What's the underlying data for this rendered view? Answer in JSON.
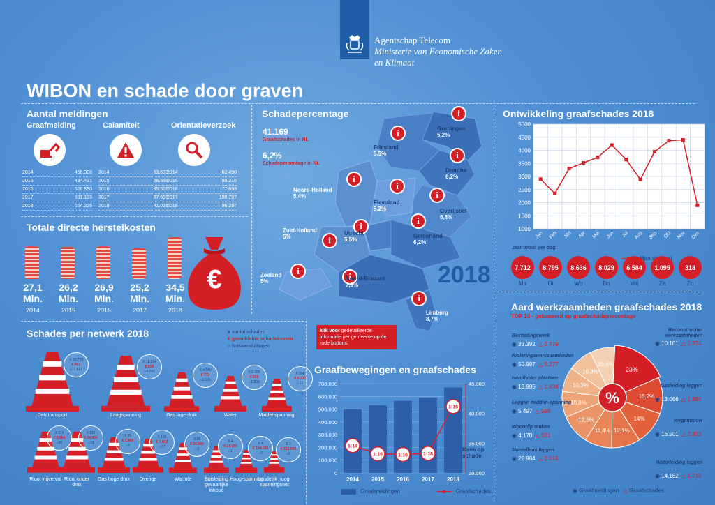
{
  "header": {
    "org_line1": "Agentschap Telecom",
    "org_line2": "Ministerie van Economische Zaken",
    "org_line3": "en Klimaat",
    "title": "WIBON en schade door graven"
  },
  "meldingen": {
    "title": "Aantal meldingen",
    "columns": [
      {
        "label": "Graafmelding",
        "icon": "excavator-icon",
        "rows": [
          [
            "2014",
            "466.388"
          ],
          [
            "2015",
            "494.431"
          ],
          [
            "2016",
            "526.890"
          ],
          [
            "2017",
            "551.133"
          ],
          [
            "2018",
            "624.035"
          ]
        ]
      },
      {
        "label": "Calamiteit",
        "icon": "warning-icon",
        "rows": [
          [
            "2014",
            "33.633"
          ],
          [
            "2015",
            "36.559"
          ],
          [
            "2016",
            "35.528"
          ],
          [
            "2017",
            "37.693"
          ],
          [
            "2018",
            "41.018"
          ]
        ]
      },
      {
        "label": "Orientatieverzoek",
        "icon": "magnifier-icon",
        "rows": [
          [
            "2014",
            "62.490"
          ],
          [
            "2015",
            "85.215"
          ],
          [
            "2016",
            "77.693"
          ],
          [
            "2017",
            "100.797"
          ],
          [
            "2018",
            "96.297"
          ]
        ]
      }
    ]
  },
  "herstelkosten": {
    "title": "Totale directe herstelkosten",
    "unit": "Mln.",
    "items": [
      {
        "year": "2014",
        "value": "27,1",
        "amount": 27.1
      },
      {
        "year": "2015",
        "value": "26,2",
        "amount": 26.2
      },
      {
        "year": "2016",
        "value": "26,9",
        "amount": 26.9
      },
      {
        "year": "2017",
        "value": "25,2",
        "amount": 25.2
      },
      {
        "year": "2018",
        "value": "34,5",
        "amount": 34.5
      }
    ],
    "symbol": "€"
  },
  "schadepercentage": {
    "title": "Schadepercentage",
    "total_value": "41.169",
    "total_label": "Graafschades in NL",
    "pct_value": "6,2%",
    "pct_label": "Schadepercentage in NL",
    "year": "2018",
    "marker_glyph": "i",
    "provinces": {
      "groningen": {
        "name": "Groningen",
        "pct": "5,2%"
      },
      "friesland": {
        "name": "Friesland",
        "pct": "5,5%"
      },
      "drenthe": {
        "name": "Drenthe",
        "pct": "6,2%"
      },
      "noord_holland": {
        "name": "Noord-Holland",
        "pct": "5,4%"
      },
      "flevoland": {
        "name": "Flevoland",
        "pct": "5,2%"
      },
      "overijssel": {
        "name": "Overijssel",
        "pct": "6,8%"
      },
      "zuid_holland": {
        "name": "Zuid-Holland",
        "pct": "5%"
      },
      "utrecht": {
        "name": "Utrecht",
        "pct": "5,5%"
      },
      "gelderland": {
        "name": "Gelderland",
        "pct": "6,2%"
      },
      "zeeland": {
        "name": "Zeeland",
        "pct": "5%"
      },
      "noord_brabant": {
        "name": "Noord-Brabant",
        "pct": "7,3%"
      },
      "limburg": {
        "name": "Limburg",
        "pct": "8,7%"
      }
    },
    "note_bold": "klik voor",
    "note_rest": "gedetailleerde informatie per gemeente op de rode buttons."
  },
  "chart_data": [
    {
      "type": "line",
      "title": "Ontwikkeling graafschades 2018",
      "categories": [
        "Jan",
        "Feb",
        "Mrt",
        "Apr",
        "Mei",
        "Jun",
        "Jul",
        "Aug",
        "Sep",
        "Okt",
        "Nov",
        "Dec"
      ],
      "series": [
        {
          "name": "Maand totaal",
          "values": [
            2900,
            2350,
            3300,
            3520,
            3730,
            4200,
            3650,
            2880,
            3950,
            4370,
            4400,
            1900
          ]
        }
      ],
      "ylim": [
        1000,
        5000
      ],
      "yticks": [
        "5000",
        "4500",
        "4000",
        "3500",
        "3000",
        "2500",
        "2000",
        "1500",
        "1000"
      ],
      "grid": true,
      "legend": "bottom-right",
      "color": "#d51f27"
    },
    {
      "type": "bar",
      "title": "Graafbewegingen en graafschades",
      "categories": [
        "2014",
        "2015",
        "2016",
        "2017",
        "2018"
      ],
      "series": [
        {
          "name": "Graafmeldingen",
          "type": "bar",
          "values": [
            500000,
            530000,
            565000,
            590000,
            670000
          ],
          "color": "#2d5ea8"
        },
        {
          "name": "Graafschades",
          "type": "line",
          "values": [
            34600,
            33200,
            33100,
            33300,
            41169
          ],
          "color": "#d51f27"
        }
      ],
      "ratios": [
        "1:14",
        "1:16",
        "1:16",
        "1:18",
        "1:16"
      ],
      "ylim_left": [
        0,
        700000
      ],
      "yticks_left": [
        "700.000",
        "600.000",
        "500.000",
        "400.000",
        "300.000",
        "200.000",
        "100.000",
        "0"
      ],
      "ylim_right": [
        30000,
        45000
      ],
      "yticks_right": [
        "45.000",
        "40.000",
        "35.000",
        "30.000"
      ],
      "right_axis_label": "Kans op schade",
      "legend": "bottom"
    },
    {
      "type": "pie",
      "title": "Aard werkzaamheden graafschades 2018",
      "subtitle": "TOP 10 - gebaseerd op graafschadepercentage",
      "center_symbol": "%",
      "labels": [
        "23%",
        "15,2%",
        "14%",
        "12,1%",
        "11,4%",
        "12,5%",
        "10,8%",
        "10,3%",
        "10,3%",
        "10,4%"
      ],
      "values": [
        23,
        15.2,
        14,
        12.1,
        11.4,
        12.5,
        10.8,
        10.3,
        10.3,
        10.4
      ],
      "colors": [
        "#d51f27",
        "#de4a30",
        "#e2613b",
        "#e57548",
        "#e88456",
        "#eb9466",
        "#eea477",
        "#f0b389",
        "#f2c29d",
        "#f4d1b3"
      ]
    }
  ],
  "dagtotaal": {
    "title": "Jaar totaal per dag:",
    "days": [
      {
        "label": "Ma",
        "value": "7.712"
      },
      {
        "label": "Di",
        "value": "8.795"
      },
      {
        "label": "Wo",
        "value": "8.636"
      },
      {
        "label": "Do",
        "value": "8.029"
      },
      {
        "label": "Vrij",
        "value": "6.584"
      },
      {
        "label": "Za",
        "value": "1.095"
      },
      {
        "label": "Zo",
        "value": "318"
      }
    ]
  },
  "netwerk": {
    "title": "Schades per netwerk 2018",
    "legend": [
      "aantal schades",
      "gemiddelde schadekosten",
      "huisaansluitingen"
    ],
    "legend_marks": [
      "x",
      "€",
      "⌂"
    ],
    "top_row": [
      {
        "name": "Datatransport",
        "schades": "X 20.770",
        "kosten": "€ 661",
        "huis": "11.617",
        "size": 1.0
      },
      {
        "name": "Laagspanning",
        "schades": "X 11.994",
        "kosten": "€ 658",
        "huis": "4.247",
        "size": 0.92
      },
      {
        "name": "Gas lage druk",
        "schades": "X 4.540",
        "kosten": "€ 733",
        "huis": "3.595",
        "size": 0.62
      },
      {
        "name": "Water",
        "schades": "X 2.786",
        "kosten": "€ 525",
        "huis": "1.908",
        "size": 0.55
      },
      {
        "name": "Middenspanning",
        "schades": "X 500",
        "kosten": "€ 6.317",
        "huis": "12",
        "size": 0.5
      }
    ],
    "bottom_row": [
      {
        "name": "Riool vrijverval",
        "schades": "X 115",
        "kosten": "€ 2.564",
        "huis": "56",
        "size": 1.0
      },
      {
        "name": "Riool onder druk",
        "schades": "X 115",
        "kosten": "€ 30.400",
        "huis": "13",
        "size": 1.0
      },
      {
        "name": "Gas hoge druk",
        "schades": "X 65",
        "kosten": "€ 2.468",
        "huis": "3",
        "size": 0.85
      },
      {
        "name": "Overige",
        "schades": "X 166",
        "kosten": "€ 1.012",
        "huis": "77",
        "size": 0.8
      },
      {
        "name": "Warmte",
        "schades": "X 20",
        "kosten": "€ 16.646",
        "huis": "3",
        "size": 0.7
      },
      {
        "name": "Buisleiding gevaarlijke inhoud",
        "schades": "X 4",
        "kosten": "€ 17.750",
        "huis": "1",
        "size": 0.6
      },
      {
        "name": "Hoog-spanning",
        "schades": "X 4",
        "kosten": "€ 104.283",
        "huis": "0",
        "size": 0.5
      },
      {
        "name": "Landelijk hoog-spanningsnet",
        "schades": "X 2",
        "kosten": "€ 313.000",
        "huis": "0",
        "size": 0.45
      }
    ]
  },
  "werkzaamheden": {
    "left": [
      {
        "name": "Bestratingswerk",
        "meld": "33.392",
        "schade": "3.479"
      },
      {
        "name": "Rioleringswerkzaamheden",
        "meld": "50.997",
        "schade": "5.277"
      },
      {
        "name": "Handholes plaatsen",
        "meld": "13.905",
        "schade": "1.434"
      },
      {
        "name": "Leggen midden-spanning",
        "meld": "5.497",
        "schade": "596"
      },
      {
        "name": "Woonrijp maken",
        "meld": "4.170",
        "schade": "521"
      },
      {
        "name": "Mantelbuis leggen",
        "meld": "22.904",
        "schade": "2.615"
      }
    ],
    "right": [
      {
        "name": "Reconstructie-werkzaamheden",
        "meld": "10.101",
        "schade": "2.324"
      },
      {
        "name": "Gasleiding leggen",
        "meld": "13.066",
        "schade": "1.989"
      },
      {
        "name": "Wegenbouw",
        "meld": "16.501",
        "schade": "2.303"
      },
      {
        "name": "Waterleiding leggen",
        "meld": "14.162",
        "schade": "1.718"
      }
    ],
    "legend_meld": "Graafmeldingen",
    "legend_schade": "Graafschades"
  }
}
